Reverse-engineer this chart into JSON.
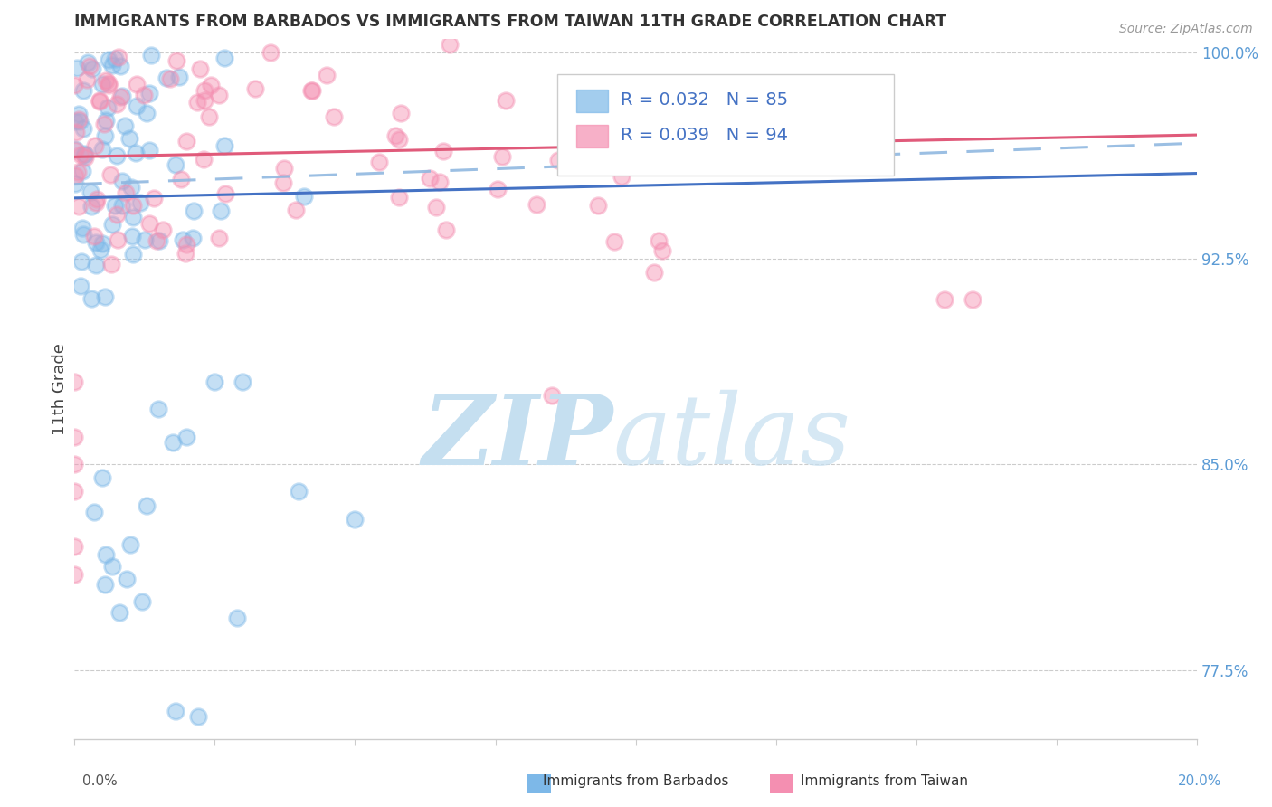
{
  "title": "IMMIGRANTS FROM BARBADOS VS IMMIGRANTS FROM TAIWAN 11TH GRADE CORRELATION CHART",
  "source": "Source: ZipAtlas.com",
  "ylabel": "11th Grade",
  "right_ytick_vals": [
    0.775,
    0.85,
    0.925,
    1.0
  ],
  "right_ytick_labels": [
    "77.5%",
    "85.0%",
    "92.5%",
    "100.0%"
  ],
  "barbados_label": "Immigrants from Barbados",
  "taiwan_label": "Immigrants from Taiwan",
  "barbados_scatter_color": "#7db8e8",
  "taiwan_scatter_color": "#f48fb1",
  "barbados_line_color": "#4472c4",
  "taiwan_line_color": "#e05a7a",
  "dash_line_color": "#90b8e0",
  "background_color": "#ffffff",
  "grid_color": "#cccccc",
  "title_color": "#333333",
  "right_axis_color": "#5b9bd5",
  "xlim": [
    0.0,
    0.2
  ],
  "ylim": [
    0.75,
    1.005
  ],
  "legend_R_barbados": "0.032",
  "legend_N_barbados": "85",
  "legend_R_taiwan": "0.039",
  "legend_N_taiwan": "94",
  "legend_color": "#4472c4",
  "watermark_zip_color": "#c5dff0",
  "watermark_atlas_color": "#c5dff0"
}
